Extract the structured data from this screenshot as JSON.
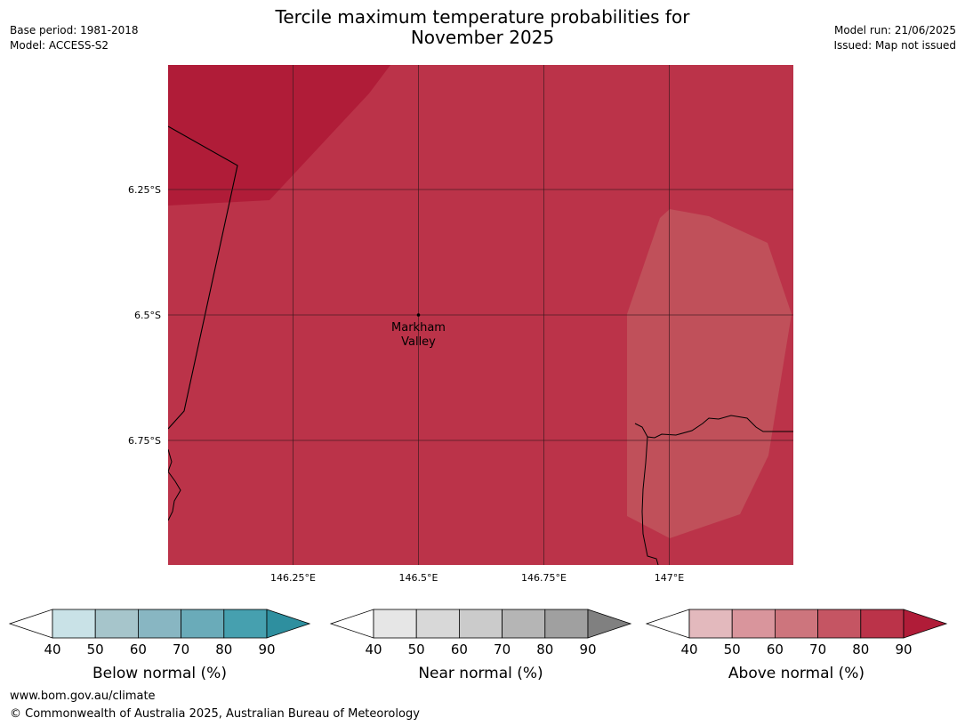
{
  "header": {
    "title_line1": "Tercile maximum temperature probabilities for",
    "title_line2": "November 2025",
    "base_period": "Base period: 1981-2018",
    "model": "Model: ACCESS-S2",
    "model_run": "Model run: 21/06/2025",
    "issued": "Issued: Map not issued"
  },
  "map": {
    "lat_labels": [
      "6.25°S",
      "6.5°S",
      "6.75°S"
    ],
    "lon_labels": [
      "146.25°E",
      "146.5°E",
      "146.75°E",
      "147°E"
    ],
    "lat_values": [
      -6.25,
      -6.5,
      -6.75
    ],
    "lon_values": [
      146.25,
      146.5,
      146.75,
      147.0
    ],
    "place": {
      "name_line1": "Markham",
      "name_line2": "Valley",
      "lat": -6.5,
      "lon": 146.5
    },
    "colors": {
      "above_70": "#c0505a",
      "above_80": "#bb3349",
      "above_90": "#b01c38"
    }
  },
  "colorbars": [
    {
      "title": "Below normal (%)",
      "ticks": [
        "40",
        "50",
        "60",
        "70",
        "80",
        "90"
      ],
      "colors": [
        "#c9e2e7",
        "#a6c5cb",
        "#88b6c2",
        "#6aabb9",
        "#46a0af",
        "#2e8f9f"
      ]
    },
    {
      "title": "Near normal (%)",
      "ticks": [
        "40",
        "50",
        "60",
        "70",
        "80",
        "90"
      ],
      "colors": [
        "#e6e6e6",
        "#d8d8d8",
        "#cbcbcb",
        "#b5b5b5",
        "#a0a0a0",
        "#808080"
      ]
    },
    {
      "title": "Above normal (%)",
      "ticks": [
        "40",
        "50",
        "60",
        "70",
        "80",
        "90"
      ],
      "colors": [
        "#e3b9bd",
        "#d9959c",
        "#cd757d",
        "#c55563",
        "#bb3349",
        "#b01c38"
      ]
    }
  ],
  "footer": {
    "url": "www.bom.gov.au/climate",
    "copyright": "© Commonwealth of Australia 2025, Australian Bureau of Meteorology"
  }
}
